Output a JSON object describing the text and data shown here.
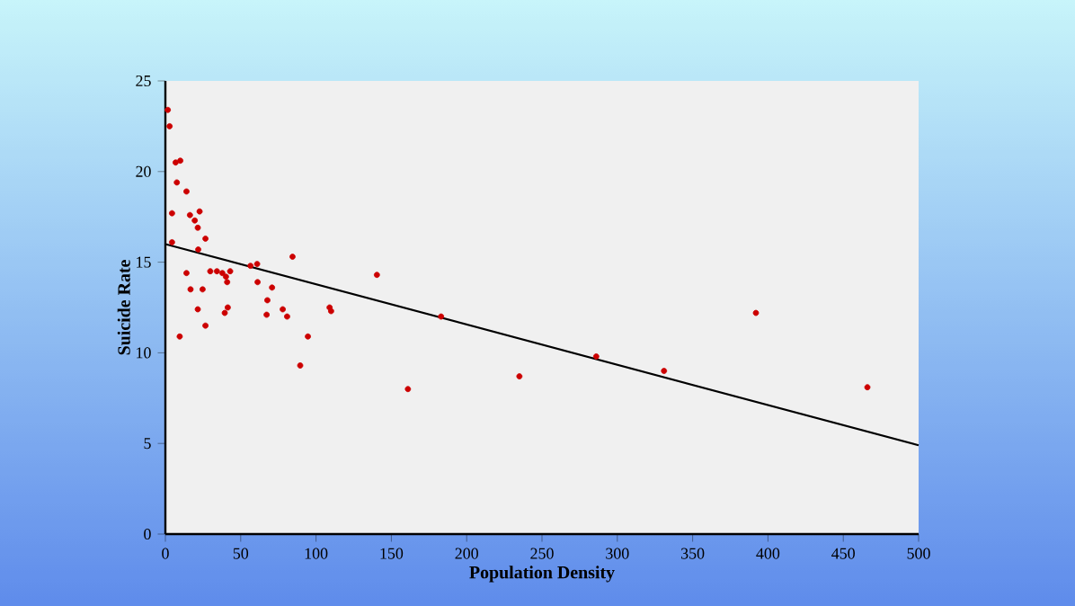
{
  "chart_data": {
    "type": "scatter",
    "xlabel": "Population Density",
    "ylabel": "Suicide Rate",
    "xlim": [
      0,
      500
    ],
    "ylim": [
      0,
      25
    ],
    "xticks": [
      0,
      50,
      100,
      150,
      200,
      250,
      300,
      350,
      400,
      450,
      500
    ],
    "yticks": [
      0,
      5,
      10,
      15,
      20,
      25
    ],
    "series": [
      {
        "marker": "circle",
        "color": "#cc0000",
        "x": [
          1.6,
          2.8,
          6.8,
          9.9,
          7.6,
          14,
          4.4,
          16.3,
          22.7,
          19.5,
          21.5,
          26.6,
          4.4,
          21.8,
          84.4,
          14,
          29.8,
          34.2,
          37.8,
          40.2,
          43,
          41,
          56.5,
          60.9,
          61.2,
          70.8,
          16.7,
          24.7,
          21.5,
          41.4,
          39.4,
          67.7,
          67.2,
          77.9,
          80.8,
          109,
          110,
          26.6,
          9.5,
          94.6,
          89.5,
          140.4,
          161,
          235,
          183,
          392,
          466,
          286,
          331
        ],
        "values": [
          23.4,
          22.5,
          20.5,
          20.6,
          19.4,
          18.9,
          17.7,
          17.6,
          17.8,
          17.3,
          16.9,
          16.3,
          16.1,
          15.7,
          15.3,
          14.4,
          14.5,
          14.5,
          14.4,
          14.2,
          14.5,
          13.9,
          14.8,
          14.9,
          13.9,
          13.6,
          13.5,
          13.5,
          12.4,
          12.5,
          12.2,
          12.9,
          12.1,
          12.4,
          12.0,
          12.5,
          12.3,
          11.5,
          10.9,
          10.9,
          9.3,
          14.3,
          8.0,
          8.7,
          12.0,
          12.2,
          8.1,
          9.8,
          9.0
        ]
      },
      {
        "type": "line",
        "marker": "none",
        "line_style": "solid",
        "color": "#000000",
        "x": [
          0,
          500
        ],
        "values": [
          16.0,
          4.9
        ]
      }
    ]
  }
}
